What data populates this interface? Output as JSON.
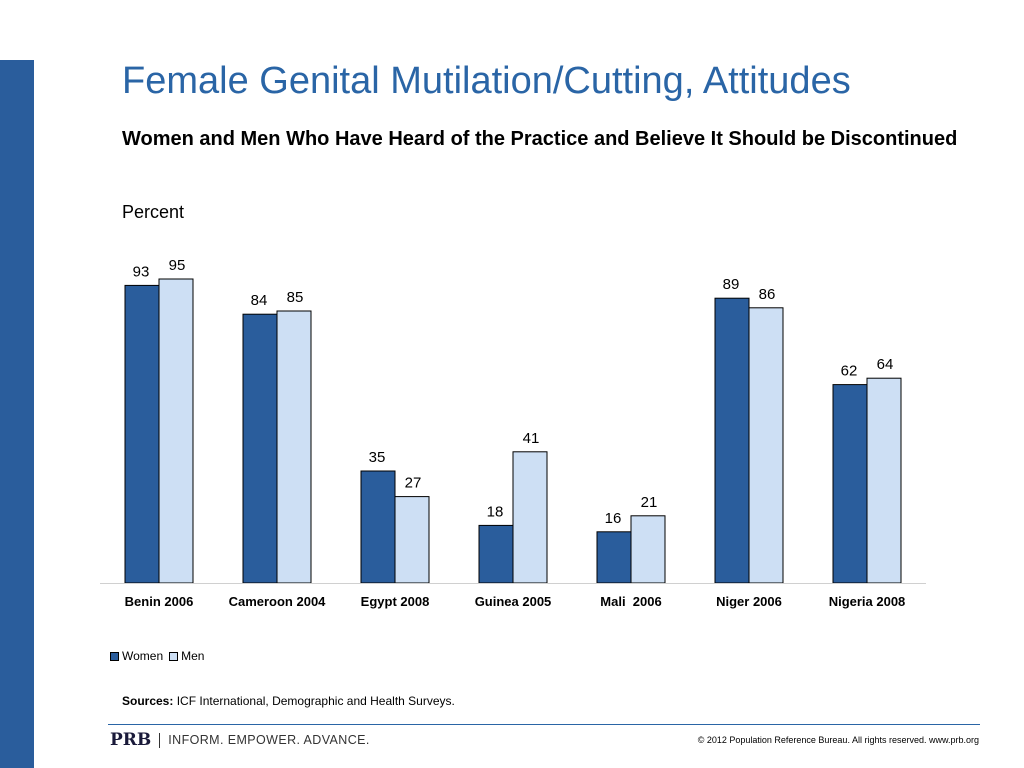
{
  "slide": {
    "title": "Female Genital Mutilation/Cutting, Attitudes",
    "subtitle": "Women and Men Who Have Heard of the Practice and Believe It Should be Discontinued",
    "unit_label": "Percent",
    "sources_label": "Sources:",
    "sources_text": "ICF International, Demographic and Health Surveys.",
    "logo_text": "PRB",
    "tagline": "INFORM. EMPOWER. ADVANCE.",
    "copyright": "© 2012 Population Reference Bureau. All rights reserved. www.prb.org"
  },
  "colors": {
    "women": "#2a5d9c",
    "men": "#cddff4",
    "accent": "#2a65a6"
  },
  "chart_data": {
    "type": "bar",
    "title": "Women and Men Who Have Heard of the Practice and Believe It Should be Discontinued",
    "xlabel": "",
    "ylabel": "Percent",
    "ylim": [
      0,
      100
    ],
    "grid": false,
    "legend_position": "bottom-left",
    "categories": [
      "Benin 2006",
      "Cameroon 2004",
      "Egypt 2008",
      "Guinea 2005",
      "Mali  2006",
      "Niger 2006",
      "Nigeria 2008"
    ],
    "series": [
      {
        "name": "Women",
        "values": [
          93,
          84,
          35,
          18,
          16,
          89,
          62
        ]
      },
      {
        "name": "Men",
        "values": [
          95,
          85,
          27,
          41,
          21,
          86,
          64
        ]
      }
    ]
  }
}
